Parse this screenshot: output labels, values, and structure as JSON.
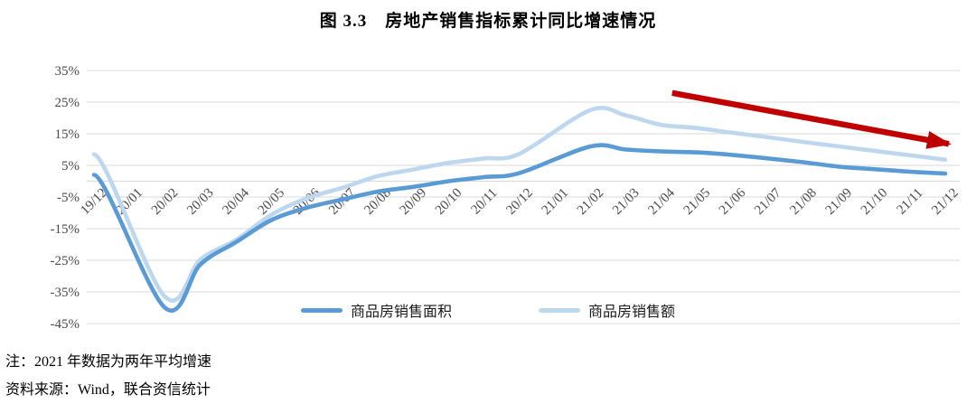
{
  "figure": {
    "title": "图 3.3　房地产销售指标累计同比增速情况",
    "note": "注：2021 年数据为两年平均增速",
    "source": "资料来源：Wind，联合资信统计"
  },
  "chart_data": {
    "type": "line",
    "title": "图 3.3 房地产销售指标累计同比增速情况",
    "categories": [
      "19/12",
      "20/01",
      "20/02",
      "20/03",
      "20/04",
      "20/05",
      "20/06",
      "20/07",
      "20/08",
      "20/09",
      "20/10",
      "20/11",
      "20/12",
      "21/01",
      "21/02",
      "21/03",
      "21/04",
      "21/05",
      "21/06",
      "21/07",
      "21/08",
      "21/09",
      "21/10",
      "21/11",
      "21/12"
    ],
    "series": [
      {
        "name": "商品房销售面积",
        "color": "#5B9BD5",
        "values": [
          2.0,
          null,
          -40.0,
          -26.3,
          -19.3,
          -12.3,
          -8.4,
          -5.8,
          -3.3,
          -1.8,
          0.0,
          1.3,
          2.6,
          null,
          11.0,
          10.0,
          9.4,
          9.1,
          8.3,
          7.2,
          6.0,
          4.6,
          3.8,
          3.0,
          2.4
        ]
      },
      {
        "name": "商品房销售额",
        "color": "#BDD7EE",
        "values": [
          8.5,
          null,
          -36.5,
          -24.7,
          -18.6,
          -10.6,
          -5.4,
          -2.1,
          1.6,
          3.7,
          5.8,
          7.2,
          8.7,
          null,
          22.5,
          20.8,
          17.8,
          16.8,
          15.3,
          13.9,
          12.4,
          11.0,
          9.6,
          8.2,
          6.8
        ]
      }
    ],
    "ylim": [
      -45,
      35
    ],
    "ytick_step": 10,
    "ytick_labels": [
      "35%",
      "25%",
      "15%",
      "5%",
      "-5%",
      "-15%",
      "-25%",
      "-35%",
      "-45%"
    ],
    "ytick_format": "percent",
    "grid": true,
    "zero_axis_line": true,
    "smooth": true,
    "x_label_rotation": -45,
    "legend_position": "bottom-center",
    "gridline_color": "#D9D9D9",
    "axis_label_color": "#4a4a4a",
    "annotation_arrow": {
      "meaning": "downward-trend",
      "color": "#C00000",
      "from_index": 16.3,
      "from_value": 27.9,
      "to_index": 24.1,
      "to_value": 11.8
    }
  }
}
